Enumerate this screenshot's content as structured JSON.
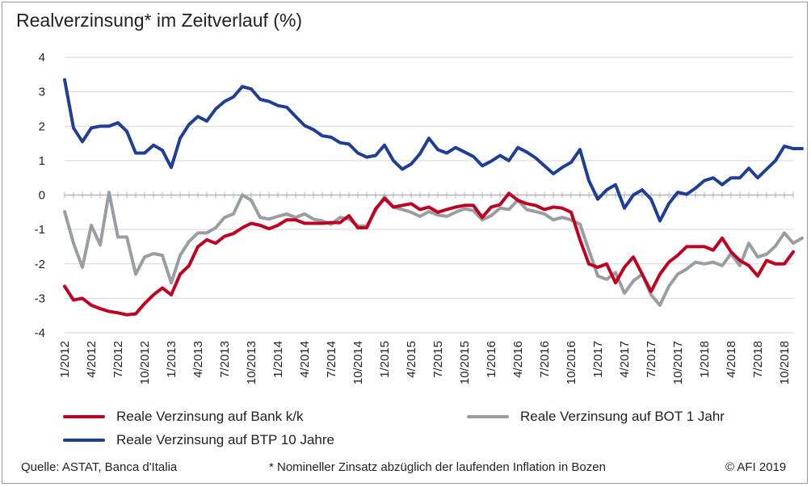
{
  "chart_data": {
    "type": "line",
    "title": "Realverzinsung* im Zeitverlauf (%)",
    "ylim": [
      -4,
      4
    ],
    "yticks": [
      4,
      3,
      2,
      1,
      0,
      -1,
      -2,
      -3,
      -4
    ],
    "grid": true,
    "legend_position": "bottom",
    "x_tick_labels": [
      "1/2012",
      "4/2012",
      "7/2012",
      "10/2012",
      "1/2013",
      "4/2013",
      "7/2013",
      "10/2013",
      "1/2014",
      "4/2014",
      "7/2014",
      "10/2014",
      "1/2015",
      "4/2015",
      "7/2015",
      "10/2015",
      "1/2016",
      "4/2016",
      "7/2016",
      "10/2016",
      "1/2017",
      "4/2017",
      "7/2017",
      "10/2017",
      "1/2018",
      "4/2018",
      "7/2018",
      "10/2018"
    ],
    "series": [
      {
        "name": "Reale Verzinsung auf Bank k/k",
        "color": "#c00020",
        "values": [
          -2.65,
          -3.05,
          -3.0,
          -3.2,
          -3.3,
          -3.38,
          -3.42,
          -3.48,
          -3.45,
          -3.15,
          -2.9,
          -2.7,
          -2.9,
          -2.3,
          -2.05,
          -1.5,
          -1.3,
          -1.4,
          -1.2,
          -1.12,
          -0.95,
          -0.82,
          -0.88,
          -0.98,
          -0.88,
          -0.72,
          -0.72,
          -0.82,
          -0.82,
          -0.82,
          -0.8,
          -0.8,
          -0.6,
          -0.95,
          -0.95,
          -0.4,
          -0.1,
          -0.35,
          -0.3,
          -0.25,
          -0.42,
          -0.35,
          -0.5,
          -0.42,
          -0.35,
          -0.3,
          -0.3,
          -0.65,
          -0.35,
          -0.28,
          0.05,
          -0.15,
          -0.25,
          -0.3,
          -0.42,
          -0.35,
          -0.38,
          -0.5,
          -1.3,
          -2.0,
          -2.1,
          -2.0,
          -2.55,
          -2.1,
          -1.8,
          -2.3,
          -2.8,
          -2.3,
          -1.95,
          -1.75,
          -1.5,
          -1.5,
          -1.5,
          -1.6,
          -1.25,
          -1.65,
          -1.9,
          -2.05,
          -2.35,
          -1.9,
          -2.0,
          -2.0,
          -1.65
        ]
      },
      {
        "name": "Reale Verzinsung auf BOT 1 Jahr",
        "color": "#9a9ea2",
        "values": [
          -0.48,
          -1.4,
          -2.1,
          -0.88,
          -1.45,
          0.08,
          -1.22,
          -1.22,
          -2.3,
          -1.8,
          -1.7,
          -1.75,
          -2.55,
          -1.75,
          -1.35,
          -1.1,
          -1.1,
          -0.95,
          -0.65,
          -0.55,
          0.0,
          -0.15,
          -0.65,
          -0.7,
          -0.62,
          -0.55,
          -0.65,
          -0.55,
          -0.7,
          -0.75,
          -0.85,
          -0.65,
          -0.7,
          -0.9,
          -0.9,
          -0.45,
          -0.05,
          -0.35,
          -0.42,
          -0.5,
          -0.62,
          -0.48,
          -0.58,
          -0.62,
          -0.5,
          -0.4,
          -0.45,
          -0.72,
          -0.6,
          -0.38,
          -0.42,
          -0.15,
          -0.42,
          -0.48,
          -0.55,
          -0.72,
          -0.65,
          -0.72,
          -0.85,
          -1.6,
          -2.35,
          -2.45,
          -2.25,
          -2.85,
          -2.5,
          -2.3,
          -2.9,
          -3.2,
          -2.65,
          -2.3,
          -2.15,
          -1.95,
          -2.0,
          -1.95,
          -2.05,
          -1.7,
          -2.05,
          -1.4,
          -1.8,
          -1.72,
          -1.48,
          -1.1,
          -1.4,
          -1.25
        ]
      },
      {
        "name": "Reale Verzinsung auf BTP 10 Jahre",
        "color": "#1f3f96",
        "values": [
          3.35,
          1.95,
          1.55,
          1.95,
          2.0,
          2.0,
          2.1,
          1.85,
          1.22,
          1.22,
          1.45,
          1.3,
          0.8,
          1.65,
          2.05,
          2.28,
          2.15,
          2.5,
          2.72,
          2.85,
          3.15,
          3.08,
          2.78,
          2.72,
          2.6,
          2.55,
          2.28,
          2.02,
          1.9,
          1.72,
          1.68,
          1.52,
          1.48,
          1.22,
          1.1,
          1.15,
          1.45,
          1.0,
          0.75,
          0.9,
          1.2,
          1.65,
          1.32,
          1.22,
          1.38,
          1.25,
          1.12,
          0.85,
          0.98,
          1.15,
          1.0,
          1.38,
          1.25,
          1.08,
          0.85,
          0.62,
          0.8,
          0.95,
          1.32,
          0.42,
          -0.12,
          0.15,
          0.3,
          -0.38,
          0.0,
          0.15,
          -0.12,
          -0.75,
          -0.25,
          0.08,
          0.02,
          0.2,
          0.42,
          0.5,
          0.3,
          0.5,
          0.5,
          0.78,
          0.5,
          0.75,
          1.0,
          1.42,
          1.35,
          1.35
        ]
      }
    ]
  },
  "legend": [
    {
      "label": "Reale Verzinsung auf Bank k/k",
      "color": "#c00020"
    },
    {
      "label": "Reale Verzinsung auf BOT 1 Jahr",
      "color": "#9a9ea2"
    },
    {
      "label": "Reale Verzinsung auf BTP 10 Jahre",
      "color": "#1f3f96"
    }
  ],
  "footer": {
    "source": "Quelle: ASTAT, Banca d'Italia",
    "note": "* Nomineller Zinsatz abzüglich der laufenden Inflation in Bozen",
    "copyright": "© AFI 2019"
  }
}
